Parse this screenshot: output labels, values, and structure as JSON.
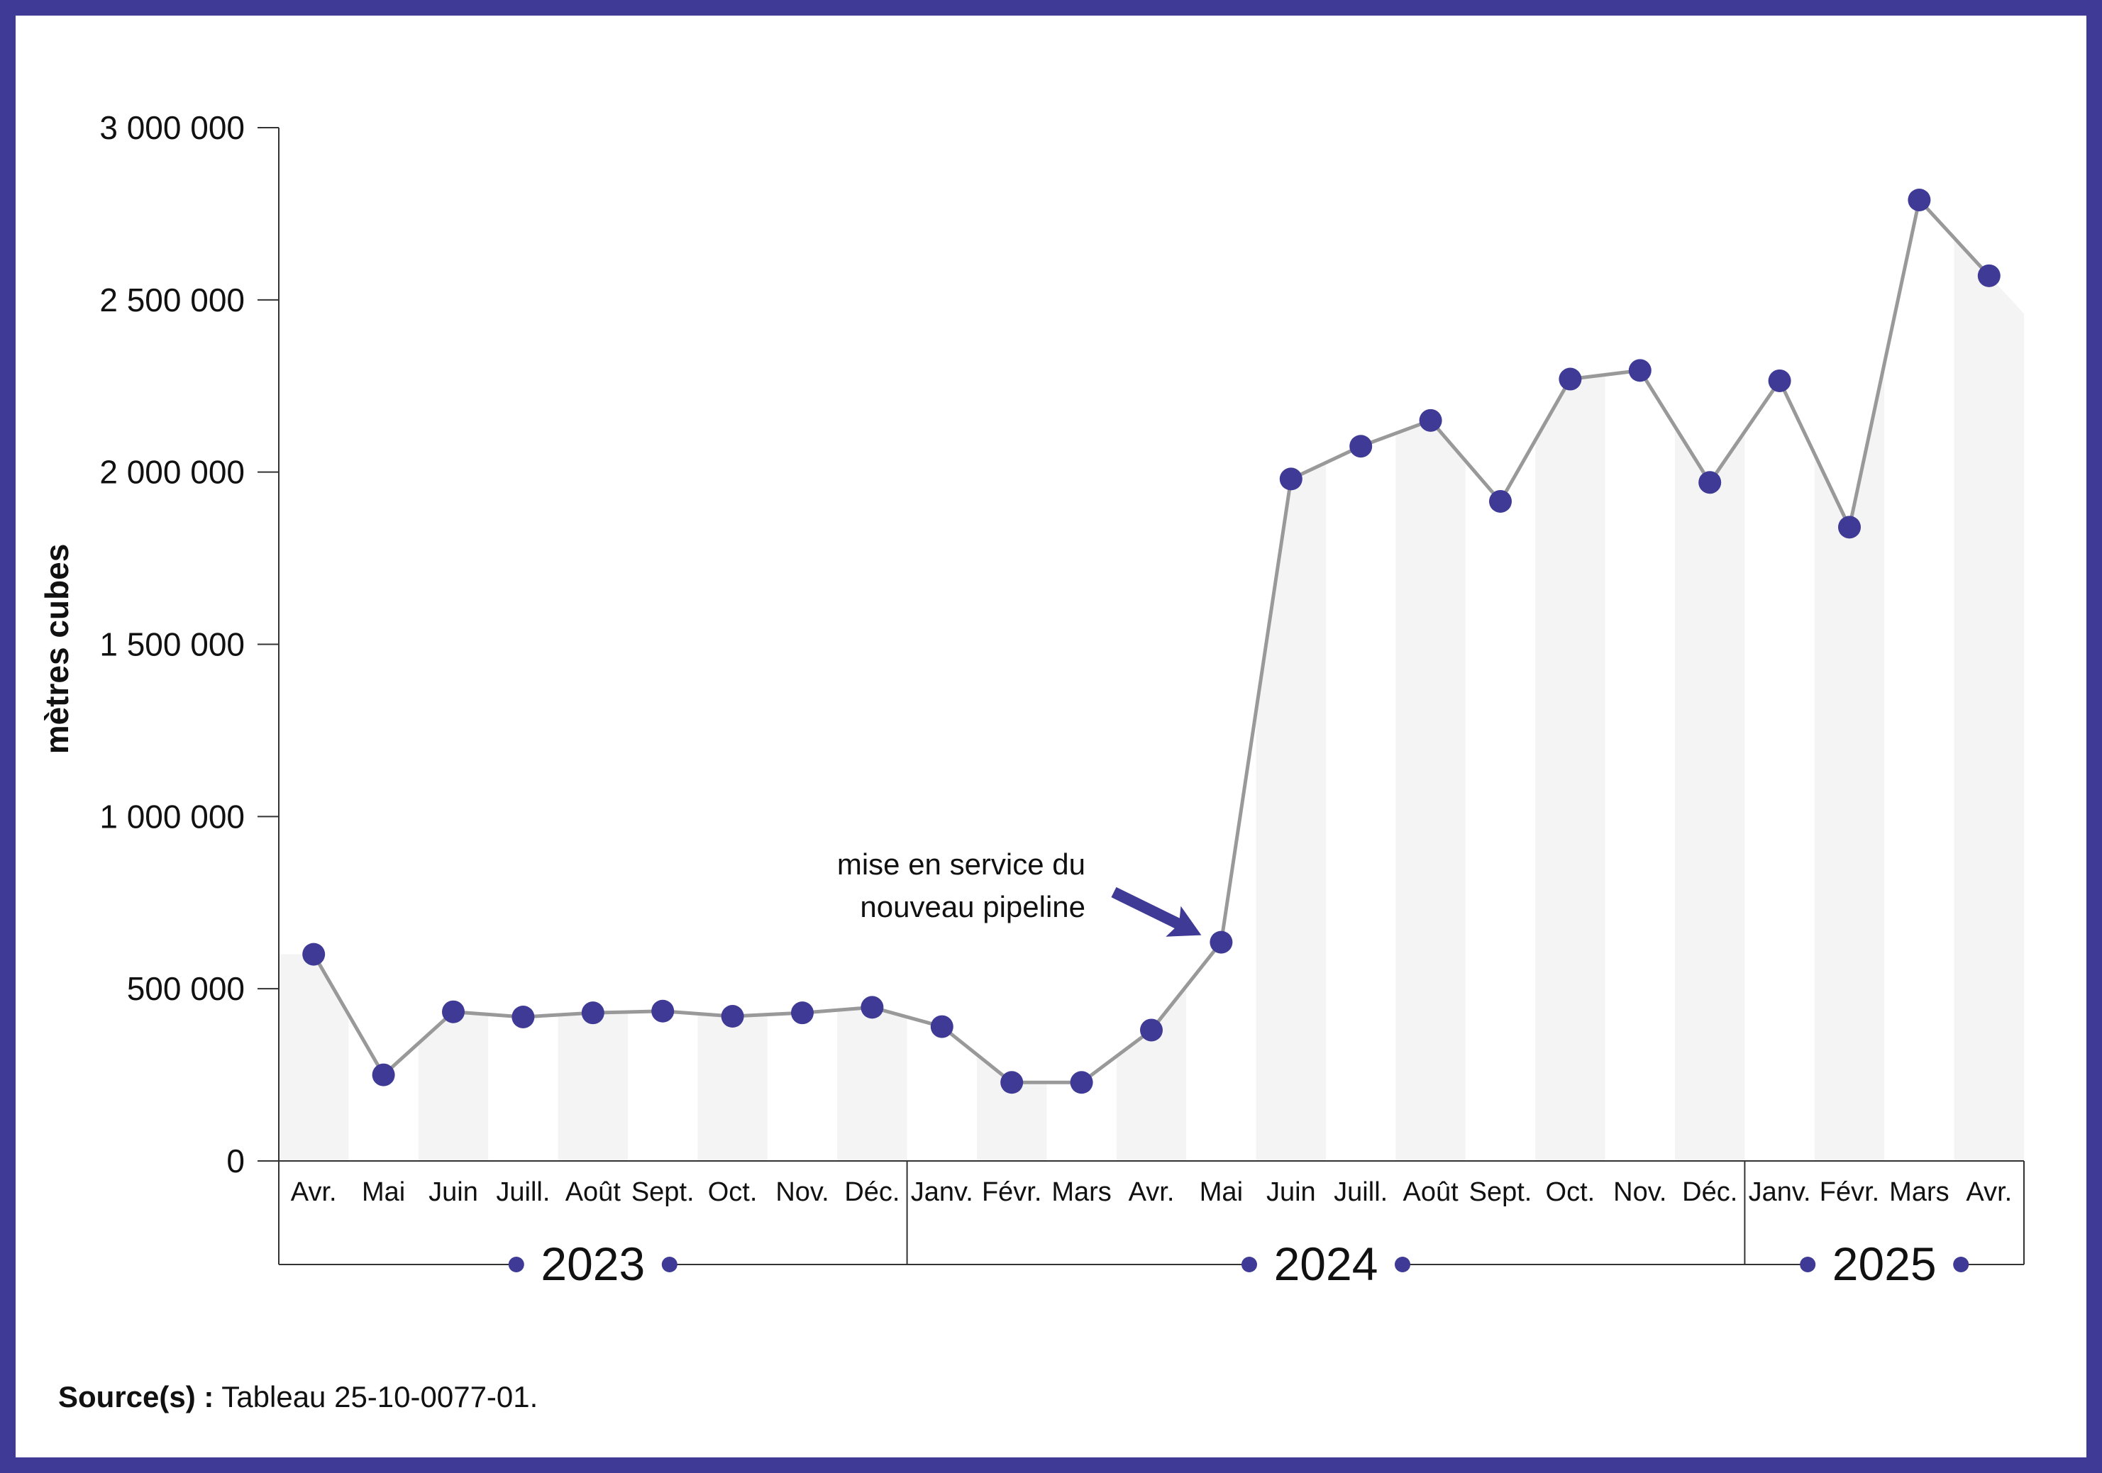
{
  "chart_data": {
    "type": "line",
    "title": "",
    "xlabel": "",
    "ylabel": "mètres cubes",
    "ylim": [
      0,
      3000000
    ],
    "yticks": [
      0,
      500000,
      1000000,
      1500000,
      2000000,
      2500000,
      3000000
    ],
    "ytick_labels": [
      "0",
      "500 000",
      "1 000 000",
      "1 500 000",
      "2 000 000",
      "2 500 000",
      "3 000 000"
    ],
    "categories": [
      "Avr.",
      "Mai",
      "Juin",
      "Juill.",
      "Août",
      "Sept.",
      "Oct.",
      "Nov.",
      "Déc.",
      "Janv.",
      "Févr.",
      "Mars",
      "Avr.",
      "Mai",
      "Juin",
      "Juill.",
      "Août",
      "Sept.",
      "Oct.",
      "Nov.",
      "Déc.",
      "Janv.",
      "Févr.",
      "Mars",
      "Avr."
    ],
    "series": [
      {
        "name": "mètres cubes",
        "values": [
          600000,
          250000,
          433000,
          418000,
          430000,
          435000,
          420000,
          430000,
          446000,
          390000,
          228000,
          228000,
          380000,
          635000,
          1980000,
          2075000,
          2150000,
          1915000,
          2270000,
          2295000,
          1970000,
          2265000,
          1840000,
          2790000,
          2570000
        ]
      }
    ],
    "year_groups": [
      {
        "label": "2023",
        "start": 0,
        "end": 8
      },
      {
        "label": "2024",
        "start": 9,
        "end": 20
      },
      {
        "label": "2025",
        "start": 21,
        "end": 24
      }
    ],
    "annotation": {
      "lines": [
        "mise en service du",
        "nouveau pipeline"
      ],
      "point_index": 13
    },
    "colors": {
      "frame": "#3f3a96",
      "marker": "#3f3a96",
      "line": "#999999",
      "band": "#f4f4f4",
      "axis": "#333333"
    }
  },
  "source": {
    "label": "Source(s) :",
    "text": "Tableau 25-10-0077-01."
  }
}
